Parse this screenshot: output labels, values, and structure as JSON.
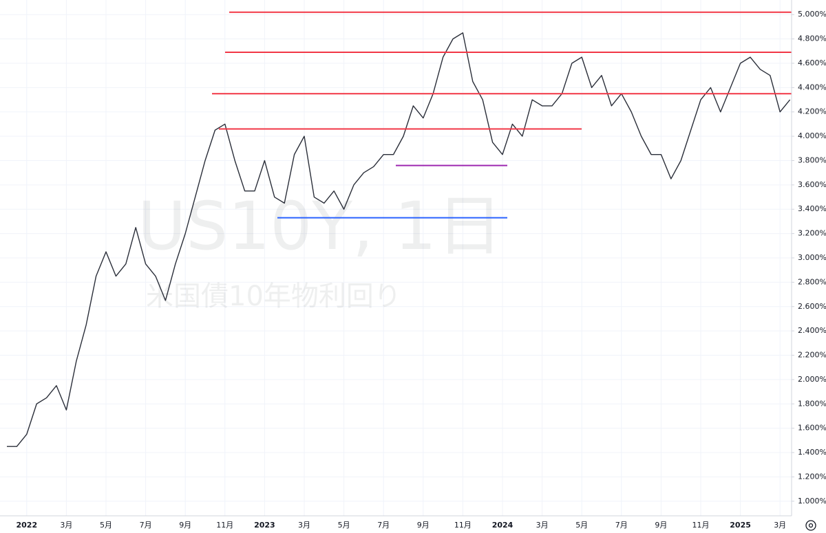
{
  "chart_data": {
    "type": "line",
    "title": "US10Y, 1日",
    "subtitle": "米国債10年物利回り",
    "categories": [
      null,
      null,
      "2022",
      null,
      null,
      null,
      "3月",
      null,
      null,
      null,
      "5月",
      null,
      null,
      null,
      "7月",
      null,
      null,
      null,
      "9月",
      null,
      null,
      null,
      "11月",
      null,
      null,
      null,
      "2023",
      null,
      null,
      null,
      "3月",
      null,
      null,
      null,
      "5月",
      null,
      null,
      null,
      "7月",
      null,
      null,
      null,
      "9月",
      null,
      null,
      null,
      "11月",
      null,
      null,
      null,
      "2024",
      null,
      null,
      null,
      "3月",
      null,
      null,
      null,
      "5月",
      null,
      null,
      null,
      "7月",
      null,
      null,
      null,
      "9月",
      null,
      null,
      null,
      "11月",
      null,
      null,
      null,
      "2025",
      null,
      null,
      null,
      "3月",
      null
    ],
    "series": [
      {
        "color": "#2a2e39",
        "values": [
          1.45,
          1.45,
          1.55,
          1.8,
          1.85,
          1.95,
          1.75,
          2.15,
          2.45,
          2.85,
          3.05,
          2.85,
          2.95,
          3.25,
          2.95,
          2.85,
          2.65,
          2.95,
          3.2,
          3.5,
          3.8,
          4.05,
          4.1,
          3.8,
          3.55,
          3.55,
          3.8,
          3.5,
          3.45,
          3.85,
          4.0,
          3.5,
          3.45,
          3.55,
          3.4,
          3.6,
          3.7,
          3.75,
          3.85,
          3.85,
          4.0,
          4.25,
          4.15,
          4.35,
          4.65,
          4.8,
          4.85,
          4.45,
          4.3,
          3.95,
          3.85,
          4.1,
          4.0,
          4.3,
          4.25,
          4.25,
          4.35,
          4.6,
          4.65,
          4.4,
          4.5,
          4.25,
          4.35,
          4.2,
          4.0,
          3.85,
          3.85,
          3.65,
          3.8,
          4.05,
          4.3,
          4.4,
          4.2,
          4.4,
          4.6,
          4.65,
          4.55,
          4.5,
          4.2,
          4.3
        ]
      }
    ],
    "levels": [
      {
        "value": 5.02,
        "color": "#f23645"
      },
      {
        "value": 4.69,
        "color": "#f23645"
      },
      {
        "value": 4.35,
        "color": "#f23645"
      },
      {
        "value": 4.06,
        "color": "#f23645"
      },
      {
        "value": 3.76,
        "color": "#9c27b0"
      },
      {
        "value": 3.33,
        "color": "#2962ff"
      }
    ],
    "ylim": [
      0.88,
      5.12
    ],
    "yticks": [
      {
        "value": 1.0,
        "label": "1.000%"
      },
      {
        "value": 1.2,
        "label": "1.200%"
      },
      {
        "value": 1.4,
        "label": "1.400%"
      },
      {
        "value": 1.6,
        "label": "1.600%"
      },
      {
        "value": 1.8,
        "label": "1.800%"
      },
      {
        "value": 2.0,
        "label": "2.000%"
      },
      {
        "value": 2.2,
        "label": "2.200%"
      },
      {
        "value": 2.4,
        "label": "2.400%"
      },
      {
        "value": 2.6,
        "label": "2.600%"
      },
      {
        "value": 2.8,
        "label": "2.800%"
      },
      {
        "value": 3.0,
        "label": "3.000%"
      },
      {
        "value": 3.2,
        "label": "3.200%"
      },
      {
        "value": 3.4,
        "label": "3.400%"
      },
      {
        "value": 3.6,
        "label": "3.600%"
      },
      {
        "value": 3.8,
        "label": "3.800%"
      },
      {
        "value": 4.0,
        "label": "4.000%"
      },
      {
        "value": 4.2,
        "label": "4.200%"
      },
      {
        "value": 4.4,
        "label": "4.400%"
      },
      {
        "value": 4.6,
        "label": "4.600%"
      },
      {
        "value": 4.8,
        "label": "4.800%"
      },
      {
        "value": 5.0,
        "label": "5.000%"
      }
    ],
    "grid": true
  }
}
